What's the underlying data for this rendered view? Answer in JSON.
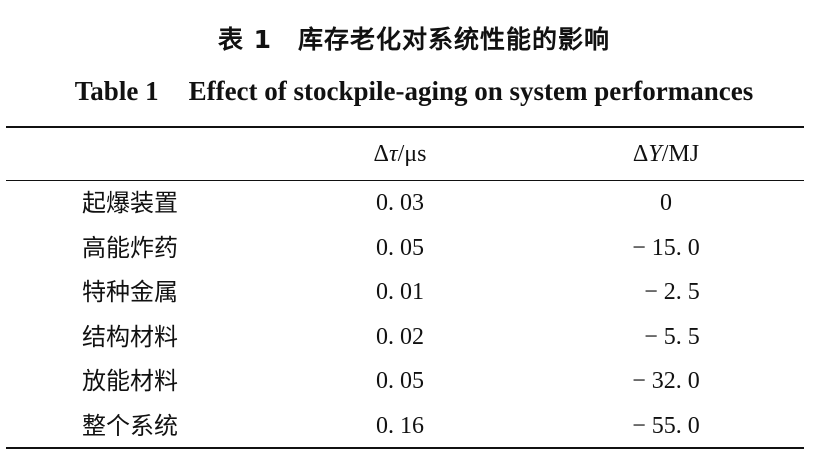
{
  "caption": {
    "cn_number": "表 1",
    "cn_title": "库存老化对系统性能的影响",
    "en_number": "Table 1",
    "en_title": "Effect of stockpile-aging on system performances"
  },
  "table": {
    "headers": {
      "col1": "",
      "col2_delta": "Δ",
      "col2_symbol": "τ",
      "col2_unit": "/μs",
      "col3_delta": "Δ",
      "col3_symbol": "Y",
      "col3_unit": "/MJ"
    },
    "rows": [
      {
        "component": "起爆装置",
        "delta_tau": "0. 03",
        "delta_y": "0"
      },
      {
        "component": "高能炸药",
        "delta_tau": "0. 05",
        "delta_y": "− 15. 0"
      },
      {
        "component": "特种金属",
        "delta_tau": "0. 01",
        "delta_y": "  − 2. 5"
      },
      {
        "component": "结构材料",
        "delta_tau": "0. 02",
        "delta_y": "  − 5. 5"
      },
      {
        "component": "放能材料",
        "delta_tau": "0. 05",
        "delta_y": "− 32. 0"
      },
      {
        "component": "整个系统",
        "delta_tau": "0. 16",
        "delta_y": "− 55. 0"
      }
    ]
  }
}
